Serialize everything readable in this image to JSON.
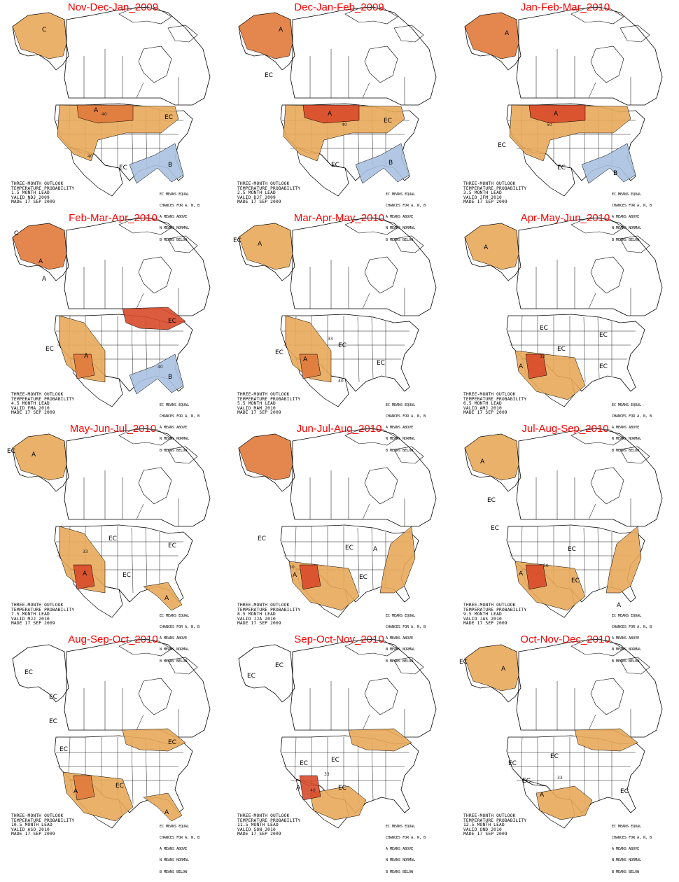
{
  "colors": {
    "title": "#ff0000",
    "above_light": "#e8a85a",
    "above_mid": "#e07a3c",
    "above_dark": "#d84a2a",
    "below": "#a9c1e0",
    "outline": "#000000"
  },
  "legend": {
    "l1": "EC MEANS EQUAL",
    "l2": "CHANCES FOR A, N, B",
    "l3": "A MEANS ABOVE",
    "l4": "N MEANS NORMAL",
    "l5": "B MEANS BELOW"
  },
  "panels": [
    {
      "title": "Nov-Dec-Jan_2009",
      "f1": "THREE-MONTH OUTLOOK",
      "f2": "TEMPERATURE PROBABILITY",
      "f3": "1.5 MONTH LEAD",
      "f4": "VALID NDJ 2009",
      "f5": "MADE 17 SEP 2009"
    },
    {
      "title": "Dec-Jan-Feb_2009",
      "f1": "THREE-MONTH OUTLOOK",
      "f2": "TEMPERATURE PROBABILITY",
      "f3": "2.5 MONTH LEAD",
      "f4": "VALID DJF 2009",
      "f5": "MADE 17 SEP 2009"
    },
    {
      "title": "Jan-Feb-Mar_2010",
      "f1": "THREE-MONTH OUTLOOK",
      "f2": "TEMPERATURE PROBABILITY",
      "f3": "3.5 MONTH LEAD",
      "f4": "VALID JFM 2010",
      "f5": "MADE 17 SEP 2009"
    },
    {
      "title": "Feb-Mar-Apr_2010",
      "f1": "THREE-MONTH OUTLOOK",
      "f2": "TEMPERATURE PROBABILITY",
      "f3": "4.5 MONTH LEAD",
      "f4": "VALID FMA 2010",
      "f5": "MADE 17 SEP 2009"
    },
    {
      "title": "Mar-Apr-May_2010",
      "f1": "THREE-MONTH OUTLOOK",
      "f2": "TEMPERATURE PROBABILITY",
      "f3": "5.5 MONTH LEAD",
      "f4": "VALID MAM 2010",
      "f5": "MADE 17 SEP 2009"
    },
    {
      "title": "Apr-May-Jun_2010",
      "f1": "THREE-MONTH OUTLOOK",
      "f2": "TEMPERATURE PROBABILITY",
      "f3": "6.5 MONTH LEAD",
      "f4": "VALID AMJ 2010",
      "f5": "MADE 17 SEP 2009"
    },
    {
      "title": "May-Jun-Jul_2010",
      "f1": "THREE-MONTH OUTLOOK",
      "f2": "TEMPERATURE PROBABILITY",
      "f3": "7.5 MONTH LEAD",
      "f4": "VALID MJJ 2010",
      "f5": "MADE 17 SEP 2009"
    },
    {
      "title": "Jun-Jul-Aug_2010",
      "f1": "THREE-MONTH OUTLOOK",
      "f2": "TEMPERATURE PROBABILITY",
      "f3": "8.5 MONTH LEAD",
      "f4": "VALID JJA 2010",
      "f5": "MADE 17 SEP 2009"
    },
    {
      "title": "Jul-Aug-Sep_2010",
      "f1": "THREE-MONTH OUTLOOK",
      "f2": "TEMPERATURE PROBABILITY",
      "f3": "9.5 MONTH LEAD",
      "f4": "VALID JAS 2010",
      "f5": "MADE 17 SEP 2009"
    },
    {
      "title": "Aug-Sep-Oct_2010",
      "f1": "THREE-MONTH OUTLOOK",
      "f2": "TEMPERATURE PROBABILITY",
      "f3": "10.5 MONTH LEAD",
      "f4": "VALID ASO 2010",
      "f5": "MADE 17 SEP 2009"
    },
    {
      "title": "Sep-Oct-Nov_2010",
      "f1": "THREE-MONTH OUTLOOK",
      "f2": "TEMPERATURE PROBABILITY",
      "f3": "11.5 MONTH LEAD",
      "f4": "VALID SON 2010",
      "f5": "MADE 17 SEP 2009"
    },
    {
      "title": "Oct-Nov-Dec_2010",
      "f1": "THREE-MONTH OUTLOOK",
      "f2": "TEMPERATURE PROBABILITY",
      "f3": "12.5 MONTH LEAD",
      "f4": "VALID OND 2010",
      "f5": "MADE 17 SEP 2009"
    }
  ],
  "map_labels": {
    "ec": "EC",
    "a": "A",
    "b": "B",
    "c": "C",
    "p33": "33",
    "p40": "40",
    "p50": "50"
  }
}
